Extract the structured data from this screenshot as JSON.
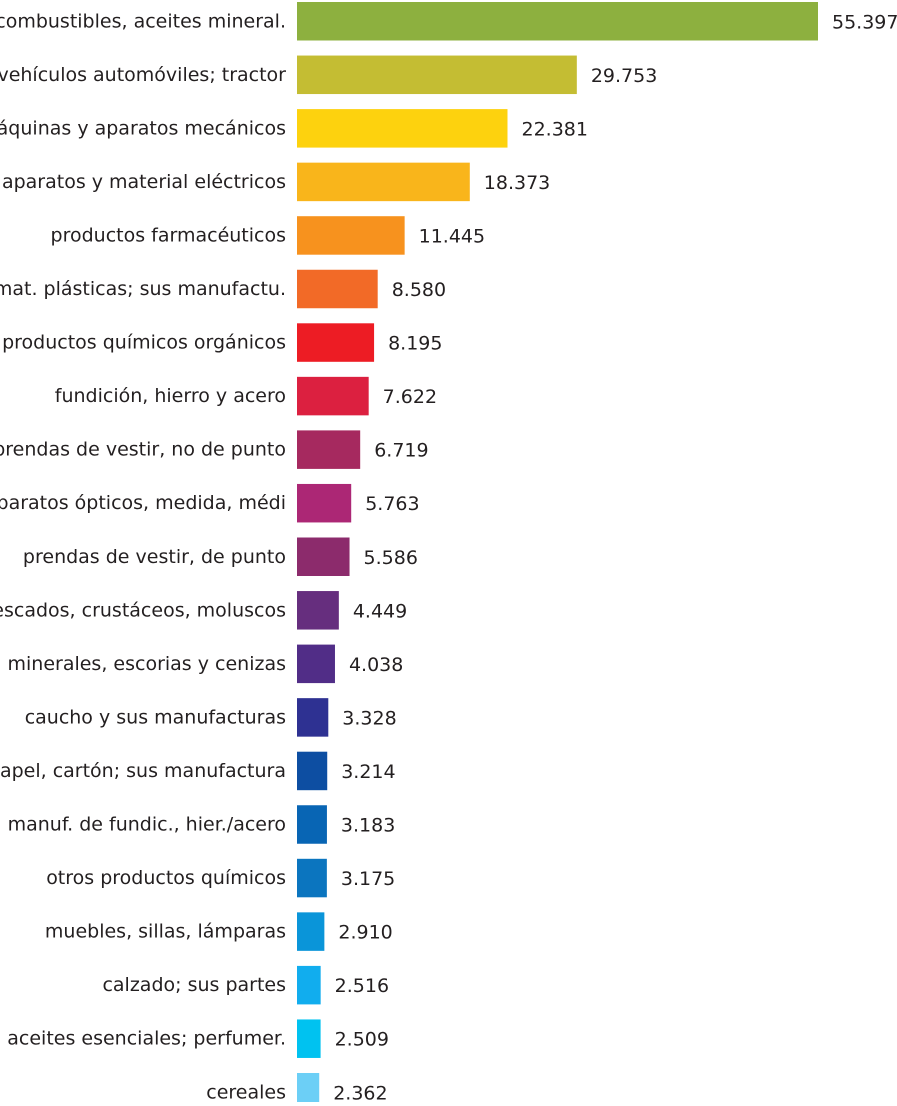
{
  "chart_data": {
    "type": "bar",
    "orientation": "horizontal",
    "title": "",
    "xlabel": "",
    "ylabel": "",
    "grid": false,
    "legend": "none",
    "xlim": [
      0,
      55.397
    ],
    "categories": [
      "combustibles, aceites mineral.",
      "vehículos automóviles; tractor",
      "máquinas y aparatos mecánicos",
      "aparatos y material eléctricos",
      "productos farmacéuticos",
      "mat. plásticas; sus manufactu.",
      "productos químicos orgánicos",
      "fundición, hierro y acero",
      "prendas de vestir, no de punto",
      "aparatos ópticos, medida, médi",
      "prendas de vestir, de punto",
      "pescados, crustáceos, moluscos",
      "minerales, escorias y cenizas",
      "caucho y sus manufacturas",
      "papel, cartón; sus manufactura",
      "manuf. de fundic., hier./acero",
      "otros productos químicos",
      "muebles, sillas, lámparas",
      "calzado; sus partes",
      "aceites esenciales; perfumer.",
      "cereales"
    ],
    "values": [
      55.397,
      29.753,
      22.381,
      18.373,
      11.445,
      8.58,
      8.195,
      7.622,
      6.719,
      5.763,
      5.586,
      4.449,
      4.038,
      3.328,
      3.214,
      3.183,
      3.175,
      2.91,
      2.516,
      2.509,
      2.362
    ],
    "value_labels": [
      "55.397",
      "29.753",
      "22.381",
      "18.373",
      "11.445",
      "8.580",
      "8.195",
      "7.622",
      "6.719",
      "5.763",
      "5.586",
      "4.449",
      "4.038",
      "3.328",
      "3.214",
      "3.183",
      "3.175",
      "2.910",
      "2.516",
      "2.509",
      "2.362"
    ],
    "colors": [
      "#8db03f",
      "#c4bd33",
      "#fdd20e",
      "#f9b51b",
      "#f7921e",
      "#f26a27",
      "#ed1c24",
      "#dc2040",
      "#a6295f",
      "#ac2775",
      "#8c2b6c",
      "#662e7e",
      "#512d87",
      "#2e3192",
      "#0d4ea2",
      "#0865b4",
      "#0b75bf",
      "#0a95d9",
      "#11adee",
      "#00c2f0",
      "#6ccff6"
    ]
  }
}
